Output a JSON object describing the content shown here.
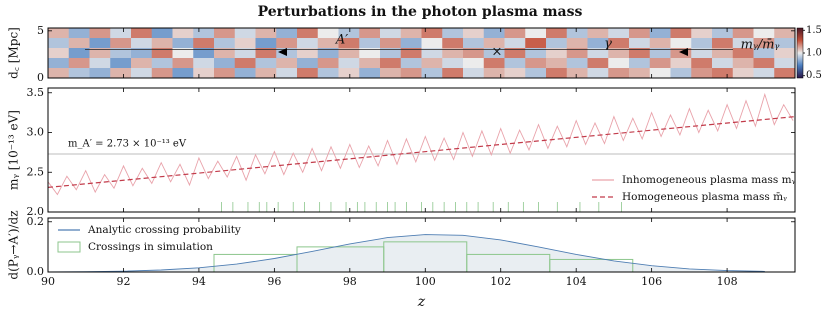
{
  "chart_data": [
    {
      "type": "heatmap",
      "title": "Perturbations in the photon plasma mass",
      "ylabel": "d꜀ [Mpc]",
      "xlim": [
        90,
        109.8
      ],
      "ylim": [
        0,
        5.3
      ],
      "yticks": [
        0,
        5
      ],
      "colorbar_label": "mᵧ/m̄ᵧ",
      "clim": [
        0.45,
        1.55
      ],
      "cticks": [
        0.5,
        {
          "value": 1.0,
          "label": "1.0"
        },
        1.5
      ],
      "colormap": [
        "#2a1648",
        "#4a7fc1",
        "#ececec",
        "#c4513a",
        "#4a1626"
      ],
      "annotations": [
        "A′",
        "γ",
        "×"
      ],
      "z": [
        [
          1.1,
          0.85,
          1.15,
          0.95,
          1.2,
          0.8,
          1.05,
          0.9,
          1.15,
          0.95,
          1.1,
          0.85,
          1.2,
          1.0,
          0.9,
          1.15,
          0.95,
          1.1,
          1.2,
          0.9,
          1.05,
          0.85,
          1.15,
          1.0,
          1.2,
          0.9,
          1.1,
          0.95,
          1.15,
          0.85,
          1.2,
          1.05,
          0.9,
          1.15,
          1.0,
          1.1
        ],
        [
          0.9,
          1.1,
          0.8,
          1.15,
          0.95,
          1.1,
          0.85,
          1.2,
          0.9,
          1.05,
          0.8,
          1.15,
          0.95,
          1.1,
          1.2,
          0.9,
          1.15,
          0.85,
          1.0,
          1.2,
          0.9,
          1.1,
          0.95,
          1.25,
          0.9,
          1.1,
          0.85,
          1.2,
          0.95,
          1.1,
          1.0,
          0.9,
          1.2,
          0.95,
          1.15,
          0.9
        ],
        [
          1.05,
          0.8,
          1.1,
          0.9,
          0.85,
          1.2,
          1.0,
          0.8,
          1.1,
          0.95,
          1.2,
          0.9,
          1.05,
          0.85,
          1.1,
          1.0,
          0.9,
          1.2,
          0.95,
          1.1,
          1.15,
          0.9,
          1.2,
          0.9,
          1.05,
          1.15,
          0.95,
          1.1,
          1.2,
          0.9,
          1.15,
          0.95,
          1.1,
          1.2,
          0.9,
          1.05
        ],
        [
          0.85,
          1.15,
          0.95,
          0.8,
          1.1,
          0.9,
          1.15,
          0.95,
          0.85,
          1.2,
          0.9,
          1.1,
          0.85,
          1.15,
          0.95,
          1.1,
          1.2,
          0.9,
          1.1,
          0.95,
          1.0,
          1.2,
          0.9,
          1.15,
          1.1,
          0.9,
          1.2,
          1.0,
          0.9,
          1.15,
          1.05,
          1.2,
          0.95,
          1.1,
          1.2,
          0.95
        ],
        [
          1.1,
          0.9,
          0.85,
          1.1,
          0.95,
          1.15,
          0.8,
          1.05,
          1.15,
          0.85,
          1.1,
          0.95,
          1.2,
          0.9,
          1.05,
          0.85,
          1.1,
          1.15,
          0.9,
          1.2,
          0.95,
          1.1,
          1.05,
          0.9,
          1.2,
          1.1,
          0.95,
          1.15,
          1.1,
          1.0,
          0.9,
          1.15,
          1.2,
          1.05,
          0.95,
          1.2
        ]
      ]
    },
    {
      "type": "line",
      "ylabel": "mᵧ [10⁻¹³ eV]",
      "xlim": [
        90,
        109.8
      ],
      "ylim": [
        2.0,
        3.56
      ],
      "yticks": [
        {
          "value": 2.0,
          "label": "2.0"
        },
        2.5,
        {
          "value": 3.0,
          "label": "3.0"
        },
        3.5
      ],
      "hline": 2.73,
      "hline_color": "#bdbdbd",
      "annotation": "m_A′ = 2.73 × 10⁻¹³ eV",
      "legend": "lower right",
      "crossings_color": "#8cc68c",
      "crossings": [
        94.6,
        94.9,
        95.3,
        95.6,
        95.8,
        96.1,
        96.5,
        96.8,
        97.2,
        97.5,
        97.9,
        98.2,
        98.4,
        98.7,
        99.0,
        99.2,
        99.5,
        99.9,
        100.2,
        100.5,
        100.8,
        101.1,
        101.4,
        101.8,
        102.2,
        102.6,
        103.0,
        103.5,
        104.1,
        104.6,
        105.2
      ],
      "series": [
        {
          "name": "Inhomogeneous plasma mass mᵧ",
          "color": "#e9a3ab",
          "style": "solid",
          "x": [
            90,
            90.25,
            90.5,
            90.75,
            91,
            91.25,
            91.5,
            91.75,
            92,
            92.25,
            92.5,
            92.75,
            93,
            93.25,
            93.5,
            93.75,
            94,
            94.25,
            94.5,
            94.75,
            95,
            95.25,
            95.5,
            95.75,
            96,
            96.25,
            96.5,
            96.75,
            97,
            97.25,
            97.5,
            97.75,
            98,
            98.25,
            98.5,
            98.75,
            99,
            99.25,
            99.5,
            99.75,
            100,
            100.25,
            100.5,
            100.75,
            101,
            101.25,
            101.5,
            101.75,
            102,
            102.25,
            102.5,
            102.75,
            103,
            103.25,
            103.5,
            103.75,
            104,
            104.25,
            104.5,
            104.75,
            105,
            105.25,
            105.5,
            105.75,
            106,
            106.25,
            106.5,
            106.75,
            107,
            107.25,
            107.5,
            107.75,
            108,
            108.25,
            108.5,
            108.75,
            109,
            109.25,
            109.5,
            109.75
          ],
          "values": [
            2.38,
            2.22,
            2.45,
            2.28,
            2.52,
            2.25,
            2.47,
            2.3,
            2.58,
            2.33,
            2.55,
            2.36,
            2.62,
            2.38,
            2.6,
            2.34,
            2.68,
            2.42,
            2.64,
            2.44,
            2.7,
            2.4,
            2.72,
            2.48,
            2.76,
            2.47,
            2.74,
            2.5,
            2.8,
            2.52,
            2.82,
            2.55,
            2.85,
            2.56,
            2.83,
            2.58,
            2.9,
            2.6,
            2.92,
            2.63,
            2.95,
            2.65,
            2.93,
            2.66,
            3.0,
            2.7,
            3.02,
            2.72,
            3.05,
            2.74,
            3.03,
            2.78,
            3.1,
            2.8,
            3.08,
            2.82,
            3.15,
            2.85,
            3.12,
            2.86,
            3.2,
            2.9,
            3.18,
            2.92,
            3.25,
            2.95,
            3.22,
            2.97,
            3.3,
            3.0,
            3.28,
            3.02,
            3.35,
            3.05,
            3.4,
            3.08,
            3.48,
            3.1,
            3.35,
            3.15
          ]
        },
        {
          "name": "Homogeneous plasma mass m̄ᵧ",
          "color": "#c23b4a",
          "style": "dashed",
          "x": [
            90,
            109.8
          ],
          "values": [
            2.31,
            3.2
          ]
        }
      ]
    },
    {
      "type": "line",
      "ylabel": "d(Pᵧ→A′)/dz",
      "xlabel": "z",
      "xlim": [
        90,
        109.8
      ],
      "ylim": [
        0,
        0.215
      ],
      "xticks": [
        90,
        92,
        94,
        96,
        98,
        100,
        102,
        104,
        106,
        108
      ],
      "yticks": [
        {
          "value": 0,
          "label": "0.0"
        },
        0.2
      ],
      "legend": "upper left",
      "fill_color": "#e9eef2",
      "series": [
        {
          "name": "Analytic crossing probability",
          "color": "#4f7eb3",
          "x": [
            90,
            91,
            92,
            93,
            94,
            95,
            96,
            97,
            98,
            99,
            100,
            101,
            102,
            103,
            104,
            105,
            106,
            107,
            108,
            109
          ],
          "values": [
            0.0004,
            0.0012,
            0.0033,
            0.0078,
            0.0166,
            0.0315,
            0.0536,
            0.082,
            0.112,
            0.137,
            0.149,
            0.146,
            0.128,
            0.1,
            0.07,
            0.044,
            0.025,
            0.0124,
            0.0056,
            0.0022
          ]
        }
      ],
      "histogram": {
        "name": "Crossings in simulation",
        "color": "#8cc68c",
        "bins": [
          94.4,
          96.6,
          98.9,
          101.1,
          103.3,
          105.5
        ],
        "counts": [
          0.07,
          0.1,
          0.12,
          0.07,
          0.05
        ]
      }
    }
  ]
}
